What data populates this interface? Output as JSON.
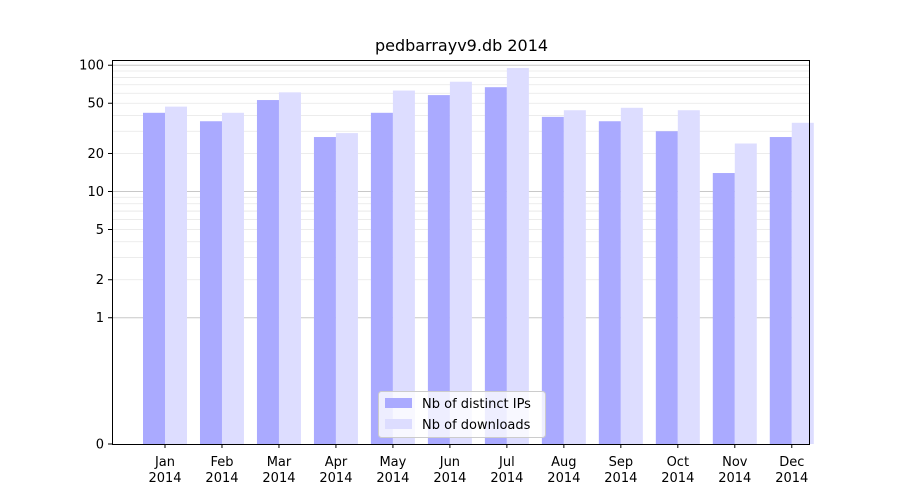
{
  "chart_data": {
    "type": "bar",
    "title": "pedbarrayv9.db 2014",
    "xlabel": "",
    "ylabel": "",
    "yscale": "symlog",
    "ylim": [
      0,
      110
    ],
    "y_ticks": [
      0,
      1,
      2,
      5,
      10,
      20,
      50,
      100
    ],
    "y_tick_labels": [
      "0",
      "1",
      "2",
      "5",
      "10",
      "20",
      "50",
      "100"
    ],
    "grid": true,
    "legend_position": "bottom-center",
    "categories": [
      "Jan\n2014",
      "Feb\n2014",
      "Mar\n2014",
      "Apr\n2014",
      "May\n2014",
      "Jun\n2014",
      "Jul\n2014",
      "Aug\n2014",
      "Sep\n2014",
      "Oct\n2014",
      "Nov\n2014",
      "Dec\n2014"
    ],
    "category_lines": [
      [
        "Jan",
        "2014"
      ],
      [
        "Feb",
        "2014"
      ],
      [
        "Mar",
        "2014"
      ],
      [
        "Apr",
        "2014"
      ],
      [
        "May",
        "2014"
      ],
      [
        "Jun",
        "2014"
      ],
      [
        "Jul",
        "2014"
      ],
      [
        "Aug",
        "2014"
      ],
      [
        "Sep",
        "2014"
      ],
      [
        "Oct",
        "2014"
      ],
      [
        "Nov",
        "2014"
      ],
      [
        "Dec",
        "2014"
      ]
    ],
    "series": [
      {
        "name": "Nb of distinct IPs",
        "color": "#aaaaff",
        "values": [
          42,
          36,
          53,
          27,
          42,
          58,
          67,
          39,
          36,
          30,
          14,
          27
        ]
      },
      {
        "name": "Nb of downloads",
        "color": "#ddddff",
        "values": [
          47,
          42,
          61,
          29,
          63,
          74,
          95,
          44,
          46,
          44,
          24,
          35
        ]
      }
    ]
  }
}
